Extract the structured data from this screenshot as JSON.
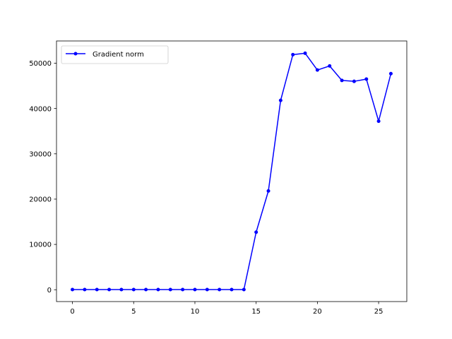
{
  "chart_data": {
    "type": "line",
    "title": "",
    "xlabel": "",
    "ylabel": "",
    "xlim": [
      -1.3,
      27.3
    ],
    "ylim": [
      -2615,
      54915
    ],
    "xticks": [
      0,
      5,
      10,
      15,
      20,
      25
    ],
    "yticks": [
      0,
      10000,
      20000,
      30000,
      40000,
      50000
    ],
    "xtick_labels": [
      "0",
      "5",
      "10",
      "15",
      "20",
      "25"
    ],
    "ytick_labels": [
      "0",
      "10000",
      "20000",
      "30000",
      "40000",
      "50000"
    ],
    "grid": false,
    "legend_position": "top-left",
    "series": [
      {
        "name": "Gradient norm",
        "color": "#0000ff",
        "marker": "circle",
        "x": [
          0,
          1,
          2,
          3,
          4,
          5,
          6,
          7,
          8,
          9,
          10,
          11,
          12,
          13,
          14,
          15,
          16,
          17,
          18,
          19,
          20,
          21,
          22,
          23,
          24,
          25,
          26
        ],
        "y": [
          30,
          30,
          30,
          30,
          30,
          30,
          30,
          30,
          30,
          30,
          30,
          30,
          30,
          30,
          30,
          12700,
          21800,
          41800,
          51900,
          52200,
          48500,
          49400,
          46200,
          46000,
          46500,
          37200,
          47700
        ]
      }
    ]
  }
}
